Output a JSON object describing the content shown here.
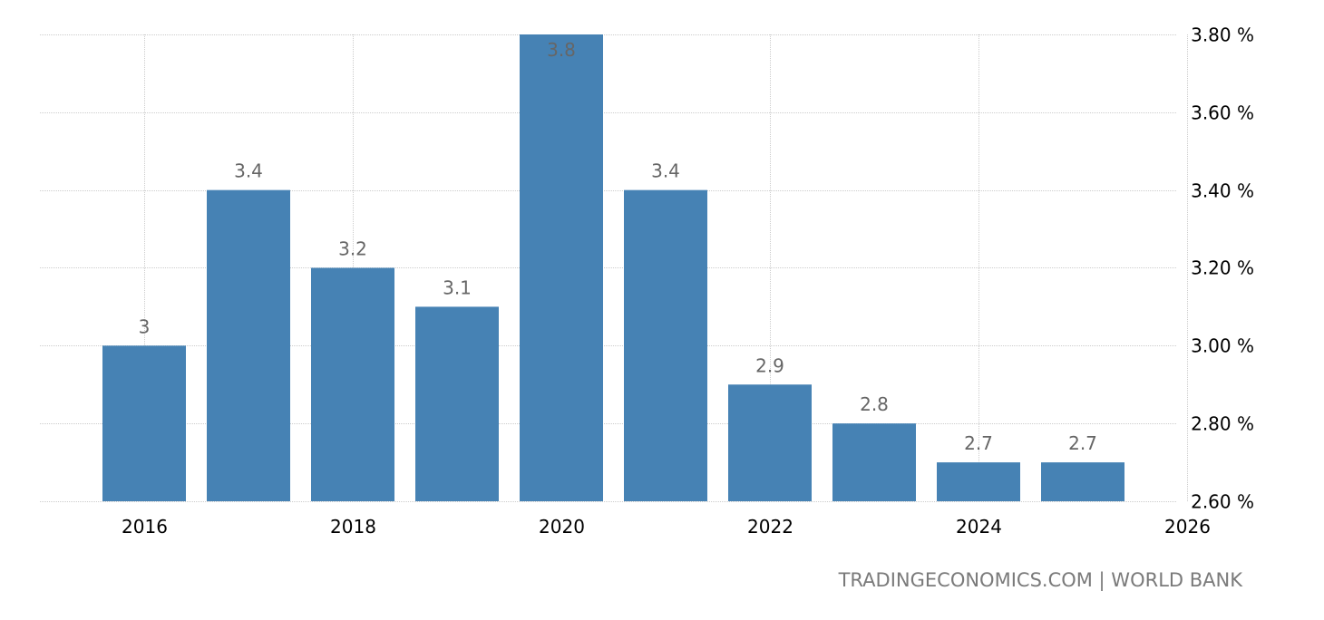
{
  "chart_data": {
    "type": "bar",
    "categories": [
      "2016",
      "2017",
      "2018",
      "2019",
      "2020",
      "2021",
      "2022",
      "2023",
      "2024",
      "2025"
    ],
    "values": [
      3.0,
      3.4,
      3.2,
      3.1,
      3.8,
      3.4,
      2.9,
      2.8,
      2.7,
      2.7
    ],
    "data_labels": [
      "3",
      "3.4",
      "3.2",
      "3.1",
      "3.8",
      "3.4",
      "2.9",
      "2.8",
      "2.7",
      "2.7"
    ],
    "x_ticks": [
      "2016",
      "2018",
      "2020",
      "2022",
      "2024",
      "2026"
    ],
    "y_ticks": [
      2.6,
      2.8,
      3.0,
      3.2,
      3.4,
      3.6,
      3.8
    ],
    "y_tick_labels": [
      "2.60 %",
      "2.80 %",
      "3.00 %",
      "3.20 %",
      "3.40 %",
      "3.60 %",
      "3.80 %"
    ],
    "ylim": [
      2.6,
      3.8
    ],
    "y_axis_position": "right",
    "grid": true,
    "title": "",
    "xlabel": "",
    "ylabel": "",
    "bar_color": "#4682b4",
    "grid_color": "#cccccc"
  },
  "source": {
    "text": "TRADINGECONOMICS.COM | WORLD BANK"
  }
}
